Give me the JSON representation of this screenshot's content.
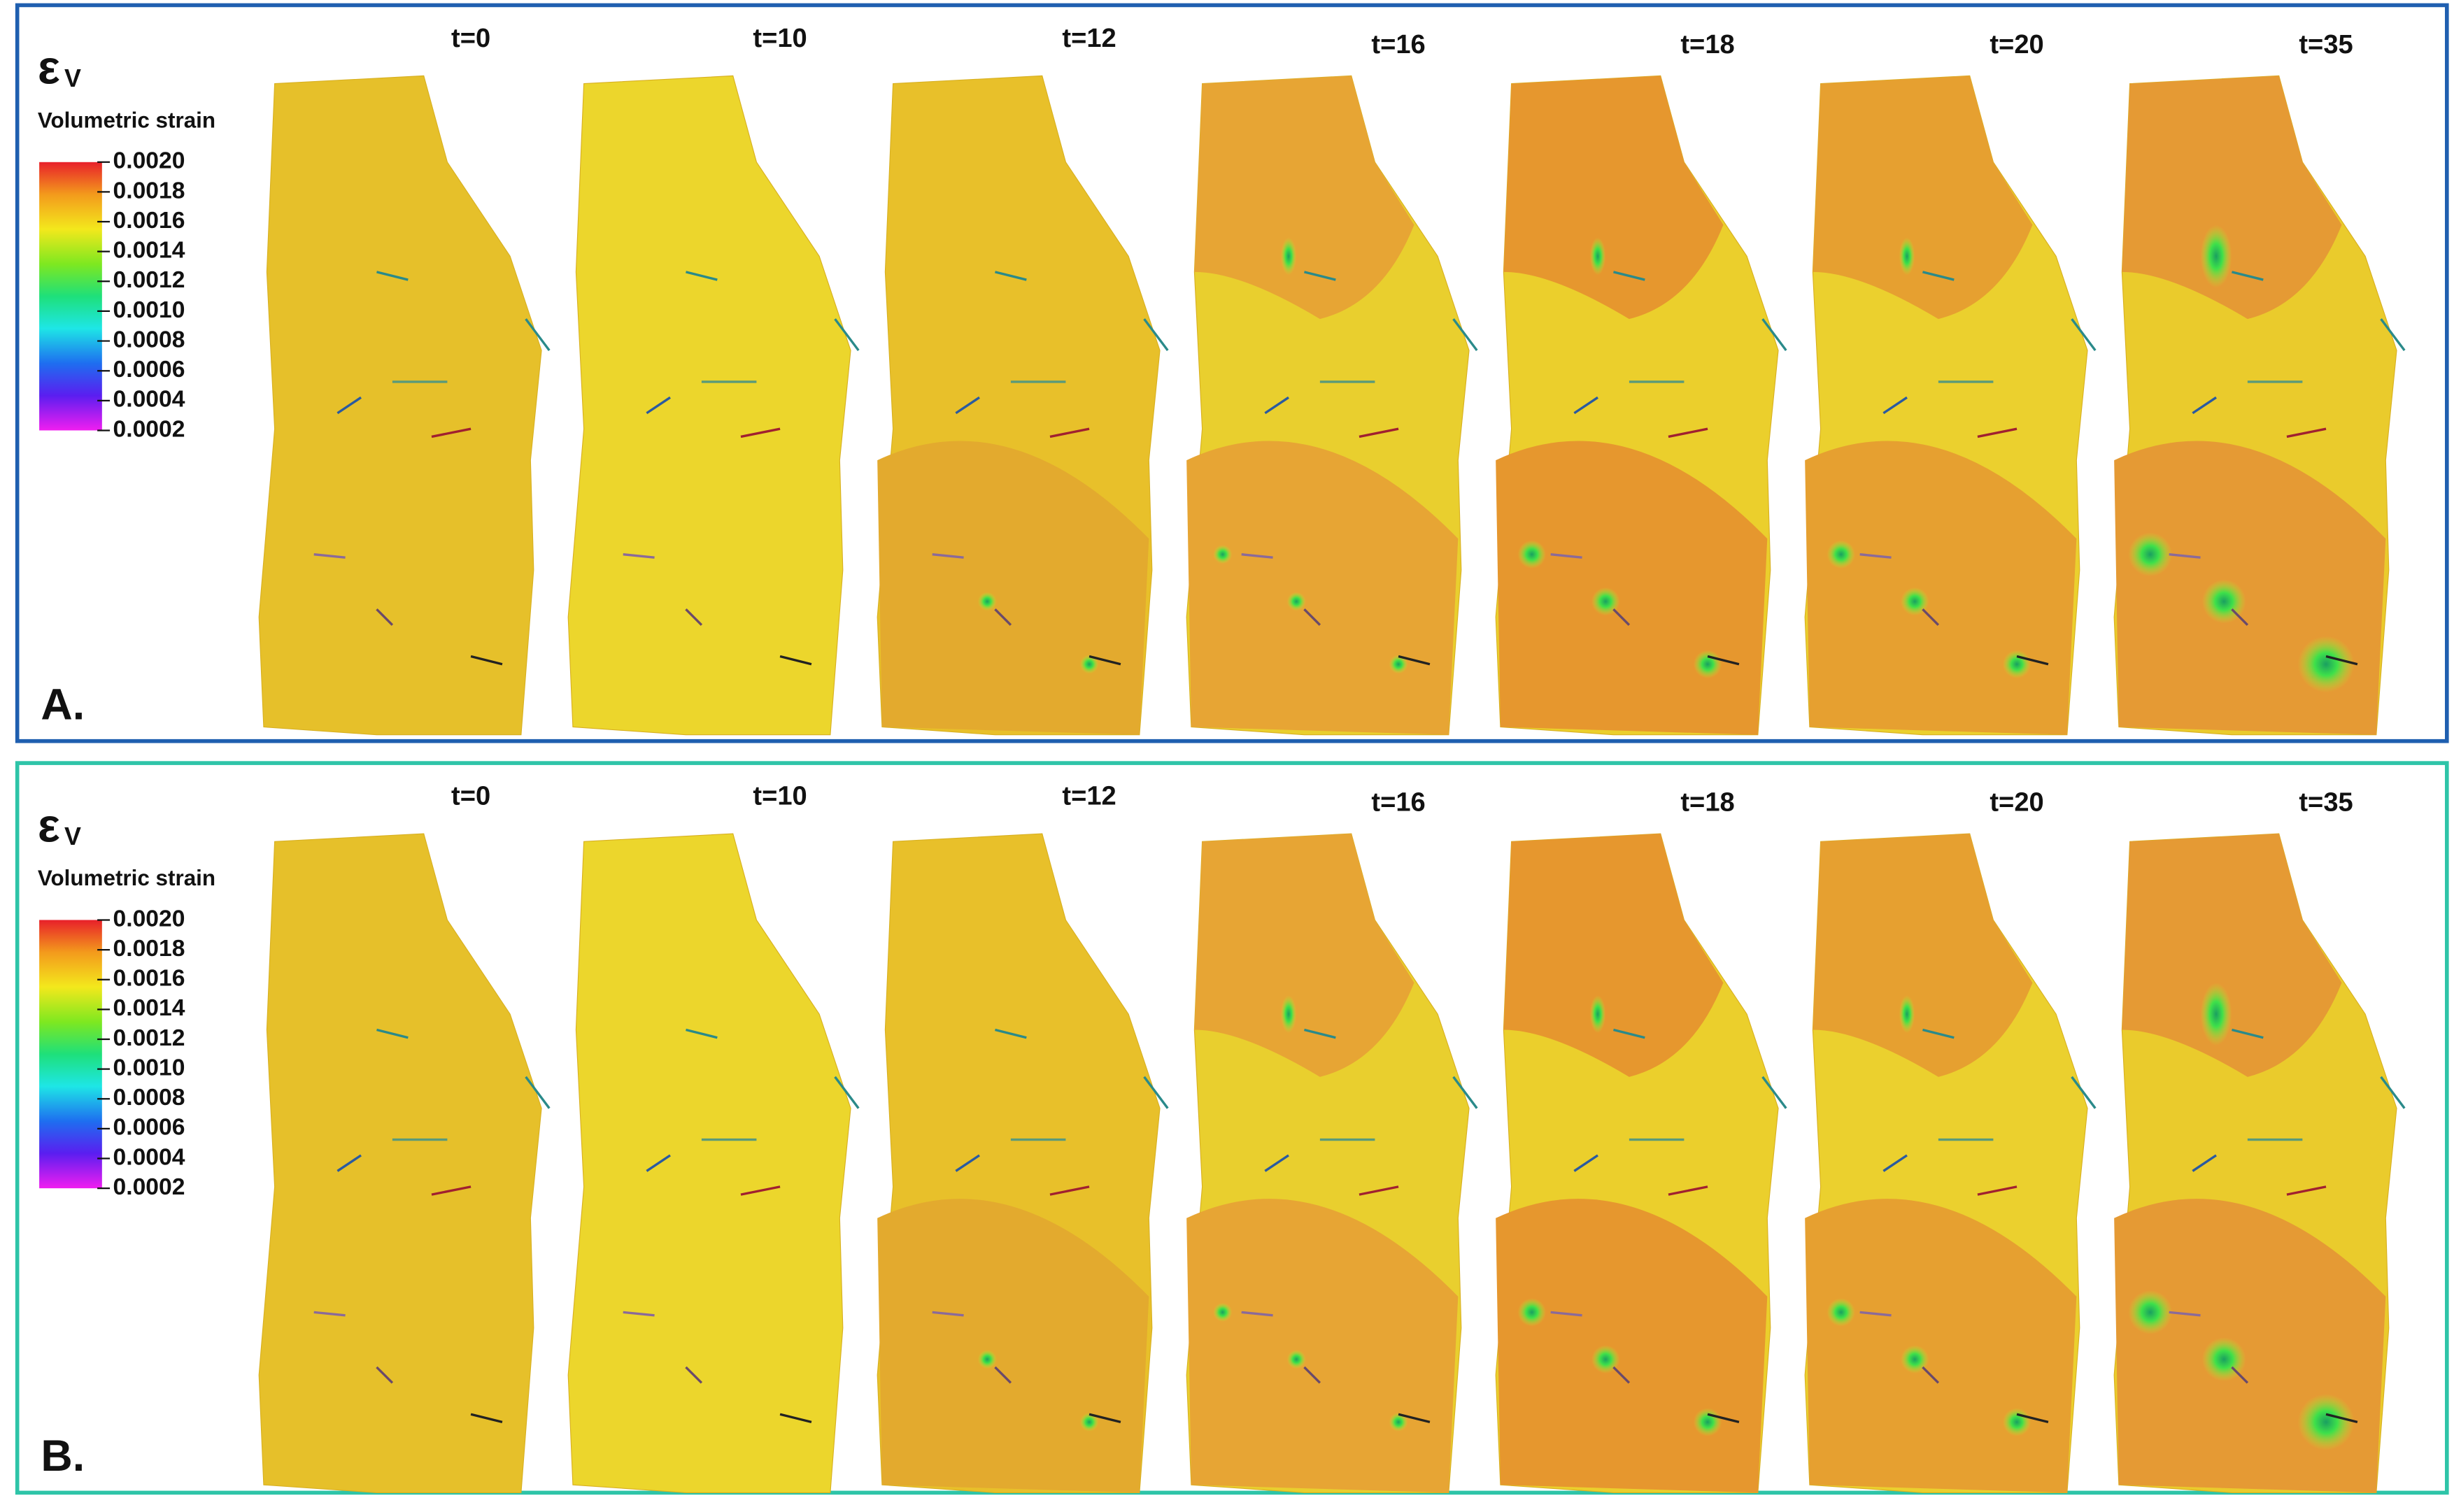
{
  "panels": [
    {
      "label": "A.",
      "symbol": "ε",
      "subscript": "V",
      "legend_title": "Volumetric strain",
      "colorbar_ticks": [
        "0.0020",
        "0.0018",
        "0.0016",
        "0.0014",
        "0.0012",
        "0.0010",
        "0.0008",
        "0.0006",
        "0.0004",
        "0.0002"
      ],
      "snapshots": [
        "t=0",
        "t=10",
        "t=12",
        "t=16",
        "t=18",
        "t=20",
        "t=35"
      ]
    },
    {
      "label": "B.",
      "symbol": "ε",
      "subscript": "V",
      "legend_title": "Volumetric strain",
      "colorbar_ticks": [
        "0.0020",
        "0.0018",
        "0.0016",
        "0.0014",
        "0.0012",
        "0.0010",
        "0.0008",
        "0.0006",
        "0.0004",
        "0.0002"
      ],
      "snapshots": [
        "t=0",
        "t=10",
        "t=12",
        "t=16",
        "t=18",
        "t=20",
        "t=35"
      ]
    }
  ]
}
